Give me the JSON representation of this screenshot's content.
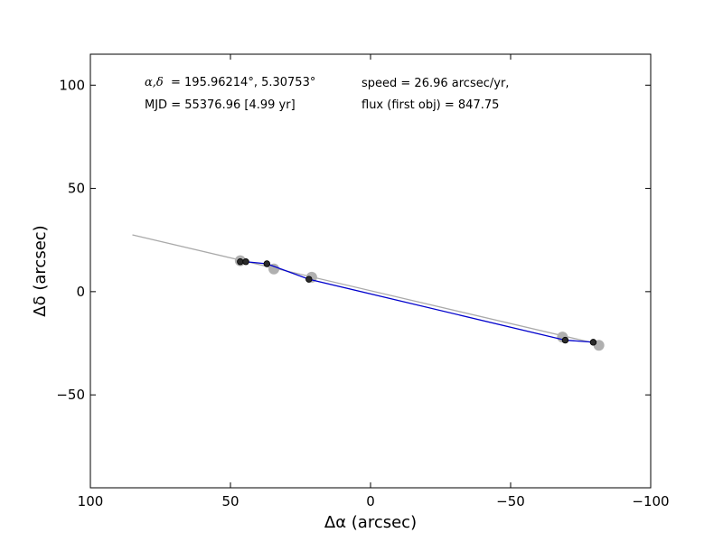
{
  "chart_data": {
    "type": "scatter",
    "title": "",
    "xlabel": "Δα (arcsec)",
    "ylabel": "Δδ (arcsec)",
    "xlim": [
      100,
      -100
    ],
    "ylim": [
      -95,
      115
    ],
    "x_inverted": true,
    "grid": false,
    "xticks": [
      100,
      50,
      0,
      -50,
      -100
    ],
    "xtick_labels": [
      "100",
      "50",
      "0",
      "−50",
      "−100"
    ],
    "yticks": [
      100,
      50,
      0,
      -50
    ],
    "ytick_labels": [
      "100",
      "50",
      "0",
      "−50"
    ],
    "annotations": {
      "coords_prefix": "α,δ",
      "coords_value": "= 195.96214°, 5.30753°",
      "mjd": "MJD = 55376.96 [4.99 yr]",
      "speed": "speed = 26.96 arcsec/yr,",
      "flux": "flux (first obj) = 847.75"
    },
    "colors": {
      "fit_line": "#aaaaaa",
      "track_line": "#0000cc",
      "predicted_points": "#b0b0b0",
      "observed_points": "#2b2b2b"
    },
    "series": [
      {
        "kind": "fit-line",
        "x": [
          85,
          -80
        ],
        "y": [
          27.5,
          -25
        ]
      },
      {
        "kind": "track",
        "x": [
          46.5,
          44.5,
          37,
          22,
          -69.5,
          -80
        ],
        "y": [
          14.5,
          14.5,
          13.5,
          6,
          -23.5,
          -24.5
        ]
      },
      {
        "kind": "predicted",
        "x": [
          46.5,
          34.5,
          21,
          -68.5,
          -81.5
        ],
        "y": [
          15,
          11,
          7,
          -22,
          -26
        ]
      },
      {
        "kind": "observed",
        "x": [
          46.5,
          44.5,
          37,
          22,
          -69.5,
          -79.5
        ],
        "y": [
          14.5,
          14.5,
          13.5,
          6,
          -23.5,
          -24.5
        ]
      }
    ]
  }
}
